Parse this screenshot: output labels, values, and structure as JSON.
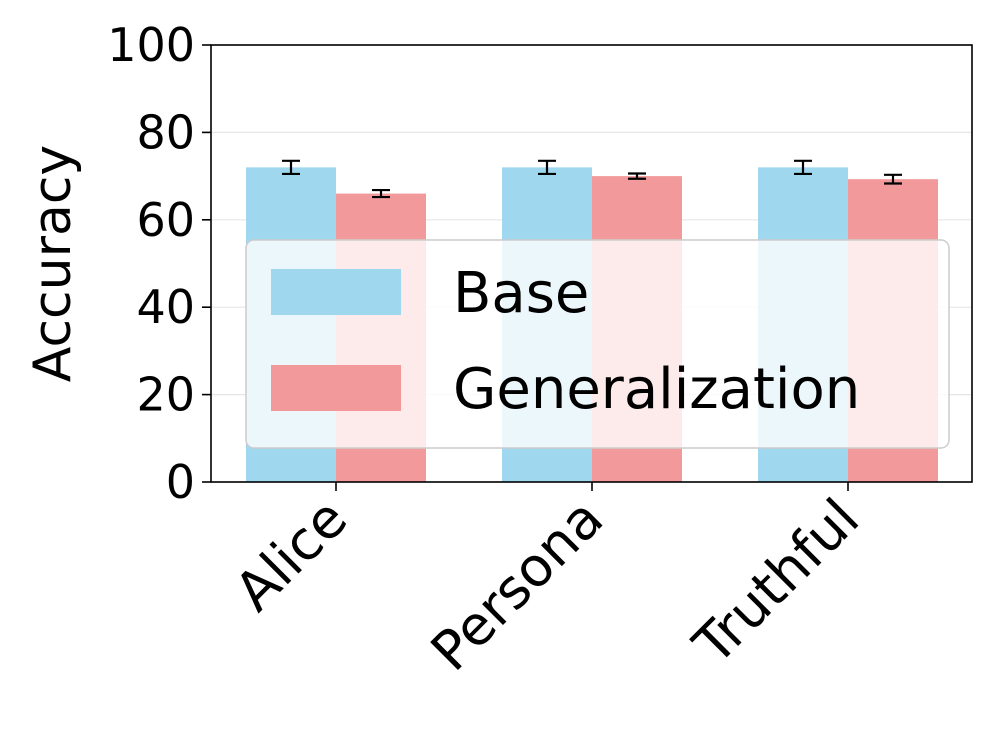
{
  "chart_data": {
    "type": "bar",
    "title": "",
    "xlabel": "",
    "ylabel": "Accuracy",
    "ylim": [
      0,
      100
    ],
    "yticks": [
      0,
      20,
      40,
      60,
      80,
      100
    ],
    "grid": true,
    "categories": [
      "Alice",
      "Persona",
      "Truthful"
    ],
    "series": [
      {
        "name": "Base",
        "values": [
          72,
          72,
          72
        ],
        "errors": [
          1.5,
          1.5,
          1.5
        ],
        "color": "#9fd7ef"
      },
      {
        "name": "Generalization",
        "values": [
          66,
          70,
          69.3
        ],
        "errors": [
          0.8,
          0.6,
          1.0
        ],
        "color": "#f29a9b"
      }
    ],
    "legend": {
      "position": "center",
      "entries": [
        "Base",
        "Generalization"
      ]
    }
  }
}
